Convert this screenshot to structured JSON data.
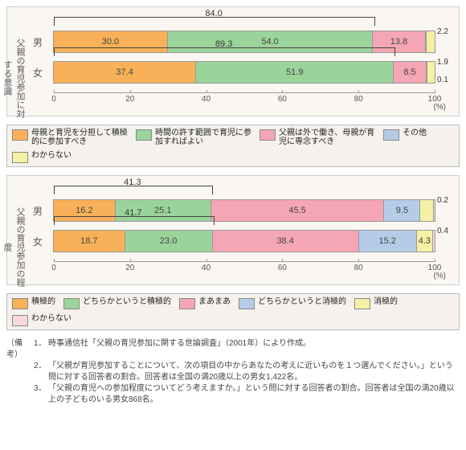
{
  "colors": {
    "orange": "#f8b158",
    "green": "#9bd49b",
    "pink": "#f5a6b4",
    "blue": "#b4cce8",
    "yellow": "#f6f0a4",
    "lpink": "#f8d7dd",
    "panel_bg": "#faf7f2"
  },
  "axis": {
    "min": 0,
    "max": 100,
    "step": 20,
    "unit": "(%)"
  },
  "chartA": {
    "vlabel": "父親の育児参加に対する意識",
    "rows": [
      {
        "label": "男",
        "bracket": 84.0,
        "segs": [
          {
            "v": 30.0,
            "c": "orange"
          },
          {
            "v": 54.0,
            "c": "green"
          },
          {
            "v": 13.8,
            "c": "pink"
          },
          {
            "v": 0.0,
            "c": "blue"
          },
          {
            "v": 2.2,
            "c": "yellow"
          }
        ],
        "side": [
          {
            "v": "2.2",
            "y": -4
          }
        ]
      },
      {
        "label": "女",
        "bracket": 89.3,
        "segs": [
          {
            "v": 37.4,
            "c": "orange"
          },
          {
            "v": 51.9,
            "c": "green"
          },
          {
            "v": 8.5,
            "c": "pink"
          },
          {
            "v": 0.1,
            "c": "blue"
          },
          {
            "v": 1.9,
            "c": "yellow"
          }
        ],
        "side": [
          {
            "v": "1.9",
            "y": -4
          },
          {
            "v": "0.1",
            "y": 18
          }
        ]
      }
    ],
    "legend": [
      {
        "c": "orange",
        "t": "母親と育児を分担して積極的に参加すべき"
      },
      {
        "c": "green",
        "t": "時間の許す範囲で育児に参加すればよい"
      },
      {
        "c": "pink",
        "t": "父親は外で働き、母親が育児に専念すべき"
      },
      {
        "c": "blue",
        "t": "その他"
      },
      {
        "c": "yellow",
        "t": "わからない"
      }
    ]
  },
  "chartB": {
    "vlabel": "父親の育児参加の程度",
    "rows": [
      {
        "label": "男",
        "bracket": 41.3,
        "segs": [
          {
            "v": 16.2,
            "c": "orange"
          },
          {
            "v": 25.1,
            "c": "green"
          },
          {
            "v": 45.5,
            "c": "pink"
          },
          {
            "v": 9.5,
            "c": "blue"
          },
          {
            "v": 3.5,
            "c": "yellow"
          },
          {
            "v": 0.2,
            "c": "lpink"
          }
        ],
        "side": [
          {
            "v": "0.2",
            "y": -4
          }
        ]
      },
      {
        "label": "女",
        "bracket": 41.7,
        "segs": [
          {
            "v": 18.7,
            "c": "orange"
          },
          {
            "v": 23.0,
            "c": "green"
          },
          {
            "v": 38.4,
            "c": "pink"
          },
          {
            "v": 15.2,
            "c": "blue"
          },
          {
            "v": 4.3,
            "c": "yellow"
          },
          {
            "v": 0.4,
            "c": "lpink"
          }
        ],
        "side": [
          {
            "v": "0.4",
            "y": -4
          }
        ]
      }
    ],
    "legend": [
      {
        "c": "orange",
        "t": "積極的"
      },
      {
        "c": "green",
        "t": "どちらかというと積極的"
      },
      {
        "c": "pink",
        "t": "まあまあ"
      },
      {
        "c": "blue",
        "t": "どちらかというと消極的"
      },
      {
        "c": "yellow",
        "t": "消極的"
      },
      {
        "c": "lpink",
        "t": "わからない"
      }
    ]
  },
  "footnotes": {
    "head": "（備考）",
    "items": [
      "時事通信社「父親の育児参加に関する世論調査」（2001年）により作成。",
      "「父親が育児参加することについて、次の項目の中からあなたの考えに近いものを１つ選んでください。」という問に対する回答者の割合。回答者は全国の満20歳以上の男女1,422名。",
      "「父親の育児への参加程度についてどう考えますか。」という問に対する回答者の割合。回答者は全国の満20歳以上の子どものいる男女868名。"
    ]
  }
}
